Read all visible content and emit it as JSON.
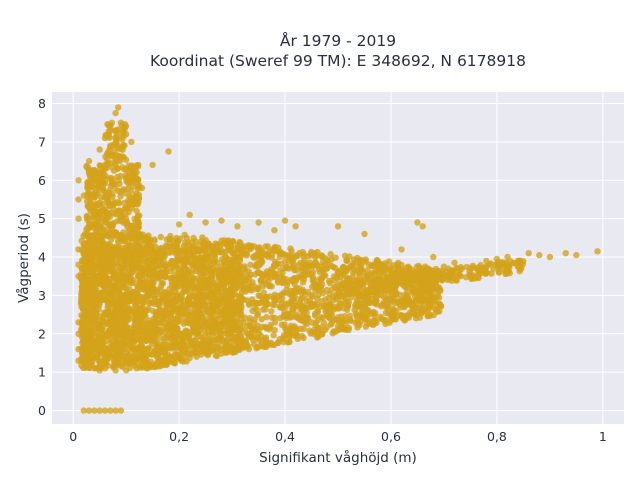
{
  "chart_data": {
    "type": "scatter",
    "title_lines": [
      "År 1979 - 2019",
      "Koordinat (Sweref 99 TM): E 348692, N 6178918"
    ],
    "xlabel": "Signifikant våghöjd (m)",
    "ylabel": "Vågperiod (s)",
    "xlim": [
      -0.04,
      1.04
    ],
    "ylim": [
      -0.35,
      8.3
    ],
    "x_ticks": [
      0,
      0.2,
      0.4,
      0.6,
      0.8,
      1
    ],
    "x_tick_labels": [
      "0",
      "0,2",
      "0,4",
      "0,6",
      "0,8",
      "1"
    ],
    "y_ticks": [
      0,
      1,
      2,
      3,
      4,
      5,
      6,
      7,
      8
    ],
    "y_tick_labels": [
      "0",
      "1",
      "2",
      "3",
      "4",
      "5",
      "6",
      "7",
      "8"
    ],
    "grid": true,
    "legend": "none",
    "background_color": "#e9e9f1",
    "marker_color": "#d4a319",
    "points": [
      [
        0.02,
        0
      ],
      [
        0.03,
        0
      ],
      [
        0.04,
        0
      ],
      [
        0.05,
        0
      ],
      [
        0.06,
        0
      ],
      [
        0.07,
        0
      ],
      [
        0.08,
        0
      ],
      [
        0.09,
        0
      ],
      [
        0.01,
        1.3
      ],
      [
        0.01,
        1.6
      ],
      [
        0.01,
        2.0
      ],
      [
        0.01,
        2.3
      ],
      [
        0.01,
        3.5
      ],
      [
        0.01,
        3.8
      ],
      [
        0.01,
        4.2
      ],
      [
        0.01,
        5.0
      ],
      [
        0.01,
        5.5
      ],
      [
        0.01,
        6.0
      ],
      [
        0.03,
        1.2
      ],
      [
        0.04,
        1.1
      ],
      [
        0.05,
        1.05
      ],
      [
        0.06,
        1.1
      ],
      [
        0.08,
        1.05
      ],
      [
        0.1,
        1.05
      ],
      [
        0.12,
        1.1
      ],
      [
        0.14,
        1.1
      ],
      [
        0.16,
        1.15
      ],
      [
        0.02,
        5.6
      ],
      [
        0.03,
        5.3
      ],
      [
        0.03,
        6.5
      ],
      [
        0.04,
        6.0
      ],
      [
        0.05,
        6.2
      ],
      [
        0.05,
        6.8
      ],
      [
        0.06,
        6.4
      ],
      [
        0.06,
        7.1
      ],
      [
        0.07,
        6.9
      ],
      [
        0.07,
        7.4
      ],
      [
        0.08,
        7.3
      ],
      [
        0.08,
        7.75
      ],
      [
        0.085,
        7.9
      ],
      [
        0.09,
        7.5
      ],
      [
        0.09,
        6.6
      ],
      [
        0.1,
        7.2
      ],
      [
        0.1,
        6.3
      ],
      [
        0.11,
        6.1
      ],
      [
        0.11,
        7.0
      ],
      [
        0.12,
        6.2
      ],
      [
        0.13,
        5.8
      ],
      [
        0.18,
        6.75
      ],
      [
        0.15,
        6.4
      ],
      [
        0.04,
        5.1
      ],
      [
        0.06,
        4.9
      ],
      [
        0.1,
        5.0
      ],
      [
        0.12,
        5.2
      ],
      [
        0.2,
        4.85
      ],
      [
        0.22,
        5.1
      ],
      [
        0.25,
        4.9
      ],
      [
        0.28,
        4.95
      ],
      [
        0.31,
        4.8
      ],
      [
        0.35,
        4.9
      ],
      [
        0.38,
        4.7
      ],
      [
        0.4,
        4.95
      ],
      [
        0.42,
        4.8
      ],
      [
        0.5,
        4.8
      ],
      [
        0.55,
        4.6
      ],
      [
        0.25,
        1.55
      ],
      [
        0.3,
        1.8
      ],
      [
        0.35,
        2.0
      ],
      [
        0.4,
        2.15
      ],
      [
        0.45,
        2.3
      ],
      [
        0.5,
        2.2
      ],
      [
        0.52,
        2.1
      ],
      [
        0.55,
        2.45
      ],
      [
        0.6,
        2.9
      ],
      [
        0.63,
        3.0
      ],
      [
        0.65,
        4.9
      ],
      [
        0.66,
        4.8
      ],
      [
        0.62,
        4.2
      ],
      [
        0.68,
        4.0
      ],
      [
        0.7,
        3.75
      ],
      [
        0.72,
        3.85
      ],
      [
        0.75,
        3.7
      ],
      [
        0.78,
        3.9
      ],
      [
        0.8,
        3.95
      ],
      [
        0.82,
        4.0
      ],
      [
        0.84,
        3.9
      ],
      [
        0.86,
        4.1
      ],
      [
        0.88,
        4.05
      ],
      [
        0.9,
        4.0
      ],
      [
        0.93,
        4.1
      ],
      [
        0.95,
        4.05
      ],
      [
        0.99,
        4.15
      ]
    ]
  }
}
